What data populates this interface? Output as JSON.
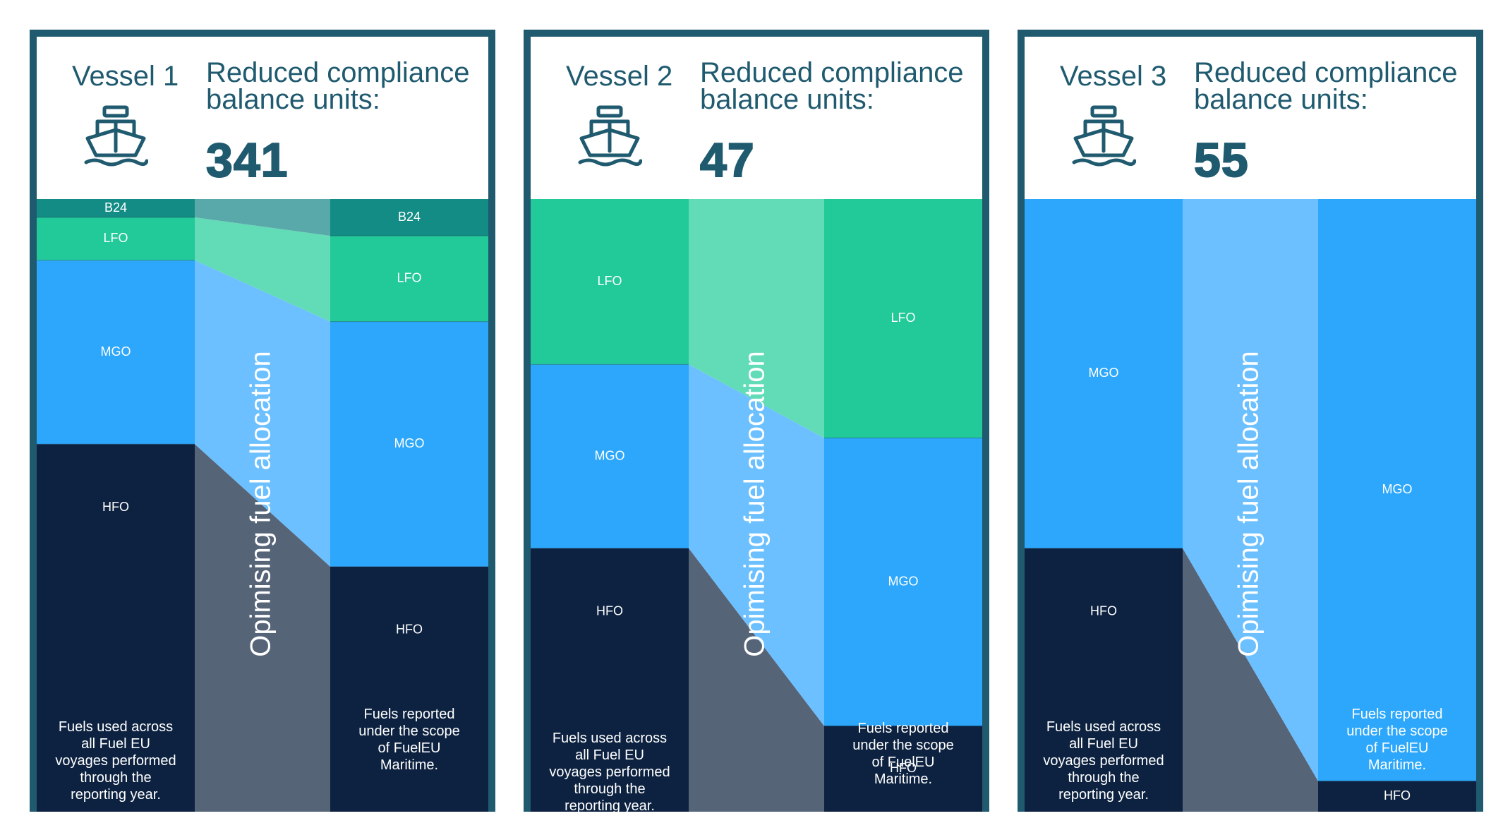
{
  "colors": {
    "frame": "#1f5a6f",
    "header_text": "#1f5a6f",
    "fuels": {
      "B24": {
        "solid": "#138c85",
        "flow": "#5aa9aa",
        "label": "#ffffff"
      },
      "LFO": {
        "solid": "#22c999",
        "flow": "#62dbb7",
        "label": "#ffffff"
      },
      "MGO": {
        "solid": "#2ca7fb",
        "flow": "#6cc0ff",
        "label": "#ffffff"
      },
      "HFO": {
        "solid": "#0d2240",
        "flow": "#566478",
        "label": "#ffffff"
      }
    }
  },
  "header_title": "Reduced compliance balance units:",
  "flow_label": "Opimising fuel allocation",
  "left_caption": "Fuels used across all  Fuel EU voyages performed through the reporting year.",
  "right_caption": "Fuels reported under the scope of FuelEU Maritime.",
  "chart_data": [
    {
      "type": "area",
      "vessel": "Vessel 1",
      "icon": "ship-icon",
      "reduced_compliance_balance_units": 341,
      "left_stack": [
        {
          "fuel": "HFO",
          "value": 60
        },
        {
          "fuel": "MGO",
          "value": 30
        },
        {
          "fuel": "LFO",
          "value": 7
        },
        {
          "fuel": "B24",
          "value": 3
        }
      ],
      "right_stack": [
        {
          "fuel": "HFO",
          "value": 40
        },
        {
          "fuel": "MGO",
          "value": 40
        },
        {
          "fuel": "LFO",
          "value": 14
        },
        {
          "fuel": "B24",
          "value": 6
        }
      ]
    },
    {
      "type": "area",
      "vessel": "Vessel 2",
      "icon": "ship-icon",
      "reduced_compliance_balance_units": 47,
      "left_stack": [
        {
          "fuel": "HFO",
          "value": 43
        },
        {
          "fuel": "MGO",
          "value": 30
        },
        {
          "fuel": "LFO",
          "value": 27
        }
      ],
      "right_stack": [
        {
          "fuel": "HFO",
          "value": 14
        },
        {
          "fuel": "MGO",
          "value": 47
        },
        {
          "fuel": "LFO",
          "value": 39
        }
      ]
    },
    {
      "type": "area",
      "vessel": "Vessel 3",
      "icon": "ship-icon",
      "reduced_compliance_balance_units": 55,
      "left_stack": [
        {
          "fuel": "HFO",
          "value": 43
        },
        {
          "fuel": "MGO",
          "value": 57
        }
      ],
      "right_stack": [
        {
          "fuel": "HFO",
          "value": 5
        },
        {
          "fuel": "MGO",
          "value": 95
        }
      ]
    }
  ]
}
